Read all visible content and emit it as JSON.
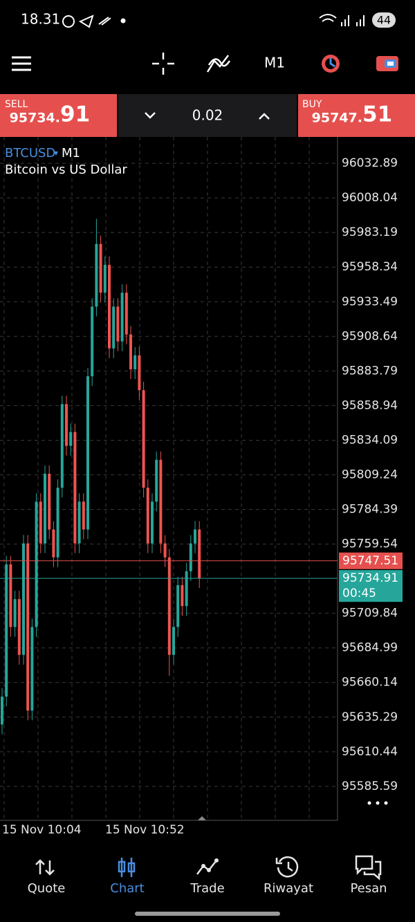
{
  "status_bar": {
    "time": "18.31",
    "battery": "44"
  },
  "toolbar": {
    "timeframe": "M1"
  },
  "trade_bar": {
    "sell_label": "SELL",
    "sell_price_head": "95734.",
    "sell_price_tail": "91",
    "volume": "0.02",
    "buy_label": "BUY",
    "buy_price_head": "95747.",
    "buy_price_tail": "51"
  },
  "chart_data": {
    "type": "candlestick",
    "symbol": "BTCUSD",
    "timeframe": "M1",
    "subtitle": "Bitcoin vs US Dollar",
    "up_color": "#26a69a",
    "down_color": "#ef5350",
    "candles": [
      [
        95630,
        95656,
        95623,
        95650
      ],
      [
        95650,
        95751,
        95643,
        95745
      ],
      [
        95745,
        95751,
        95693,
        95700
      ],
      [
        95700,
        95726,
        95693,
        95720
      ],
      [
        95720,
        95726,
        95673,
        95680
      ],
      [
        95680,
        95766,
        95673,
        95760
      ],
      [
        95760,
        95766,
        95633,
        95640
      ],
      [
        95640,
        95706,
        95633,
        95700
      ],
      [
        95700,
        95796,
        95693,
        95790
      ],
      [
        95790,
        95796,
        95753,
        95760
      ],
      [
        95760,
        95816,
        95753,
        95810
      ],
      [
        95810,
        95816,
        95763,
        95770
      ],
      [
        95770,
        95776,
        95743,
        95750
      ],
      [
        95750,
        95806,
        95743,
        95800
      ],
      [
        95800,
        95866,
        95793,
        95860
      ],
      [
        95860,
        95866,
        95823,
        95830
      ],
      [
        95830,
        95846,
        95823,
        95840
      ],
      [
        95840,
        95846,
        95753,
        95760
      ],
      [
        95760,
        95796,
        95753,
        95790
      ],
      [
        95790,
        95796,
        95763,
        95770
      ],
      [
        95770,
        95886,
        95763,
        95880
      ],
      [
        95880,
        95936,
        95873,
        95930
      ],
      [
        95930,
        95993,
        95923,
        95975
      ],
      [
        95975,
        95981,
        95933,
        95940
      ],
      [
        95940,
        95966,
        95933,
        95960
      ],
      [
        95960,
        95966,
        95893,
        95900
      ],
      [
        95900,
        95936,
        95893,
        95930
      ],
      [
        95930,
        95936,
        95898,
        95905
      ],
      [
        95905,
        95946,
        95898,
        95940
      ],
      [
        95940,
        95946,
        95903,
        95910
      ],
      [
        95910,
        95916,
        95878,
        95885
      ],
      [
        95885,
        95901,
        95878,
        95895
      ],
      [
        95895,
        95901,
        95863,
        95870
      ],
      [
        95870,
        95876,
        95793,
        95800
      ],
      [
        95800,
        95806,
        95753,
        95760
      ],
      [
        95760,
        95796,
        95753,
        95790
      ],
      [
        95790,
        95826,
        95783,
        95820
      ],
      [
        95820,
        95826,
        95753,
        95760
      ],
      [
        95760,
        95766,
        95743,
        95750
      ],
      [
        95750,
        95756,
        95665,
        95680
      ],
      [
        95680,
        95706,
        95673,
        95700
      ],
      [
        95700,
        95736,
        95693,
        95730
      ],
      [
        95730,
        95736,
        95708,
        95715
      ],
      [
        95715,
        95746,
        95708,
        95740
      ],
      [
        95740,
        95766,
        95733,
        95760
      ],
      [
        95760,
        95776,
        95753,
        95770
      ],
      [
        95770,
        95776,
        95728,
        95735
      ]
    ],
    "ylim": [
      95561.2,
      96051.8
    ],
    "yticks": [
      96032.89,
      96008.04,
      95983.19,
      95958.34,
      95933.49,
      95908.64,
      95883.79,
      95858.94,
      95834.09,
      95809.24,
      95784.39,
      95759.54,
      95709.84,
      95684.99,
      95660.14,
      95635.29,
      95610.44,
      95585.59
    ],
    "grid": true,
    "xtick_labels": [
      "15 Nov 10:04",
      "15 Nov 10:52"
    ],
    "ask": 95747.51,
    "ask_color": "#e5504e",
    "bid": 95734.91,
    "bid_color": "#26a69a",
    "timer": "00:45"
  },
  "nav": [
    {
      "label": "Quote"
    },
    {
      "label": "Chart"
    },
    {
      "label": "Trade"
    },
    {
      "label": "Riwayat"
    },
    {
      "label": "Pesan"
    }
  ]
}
